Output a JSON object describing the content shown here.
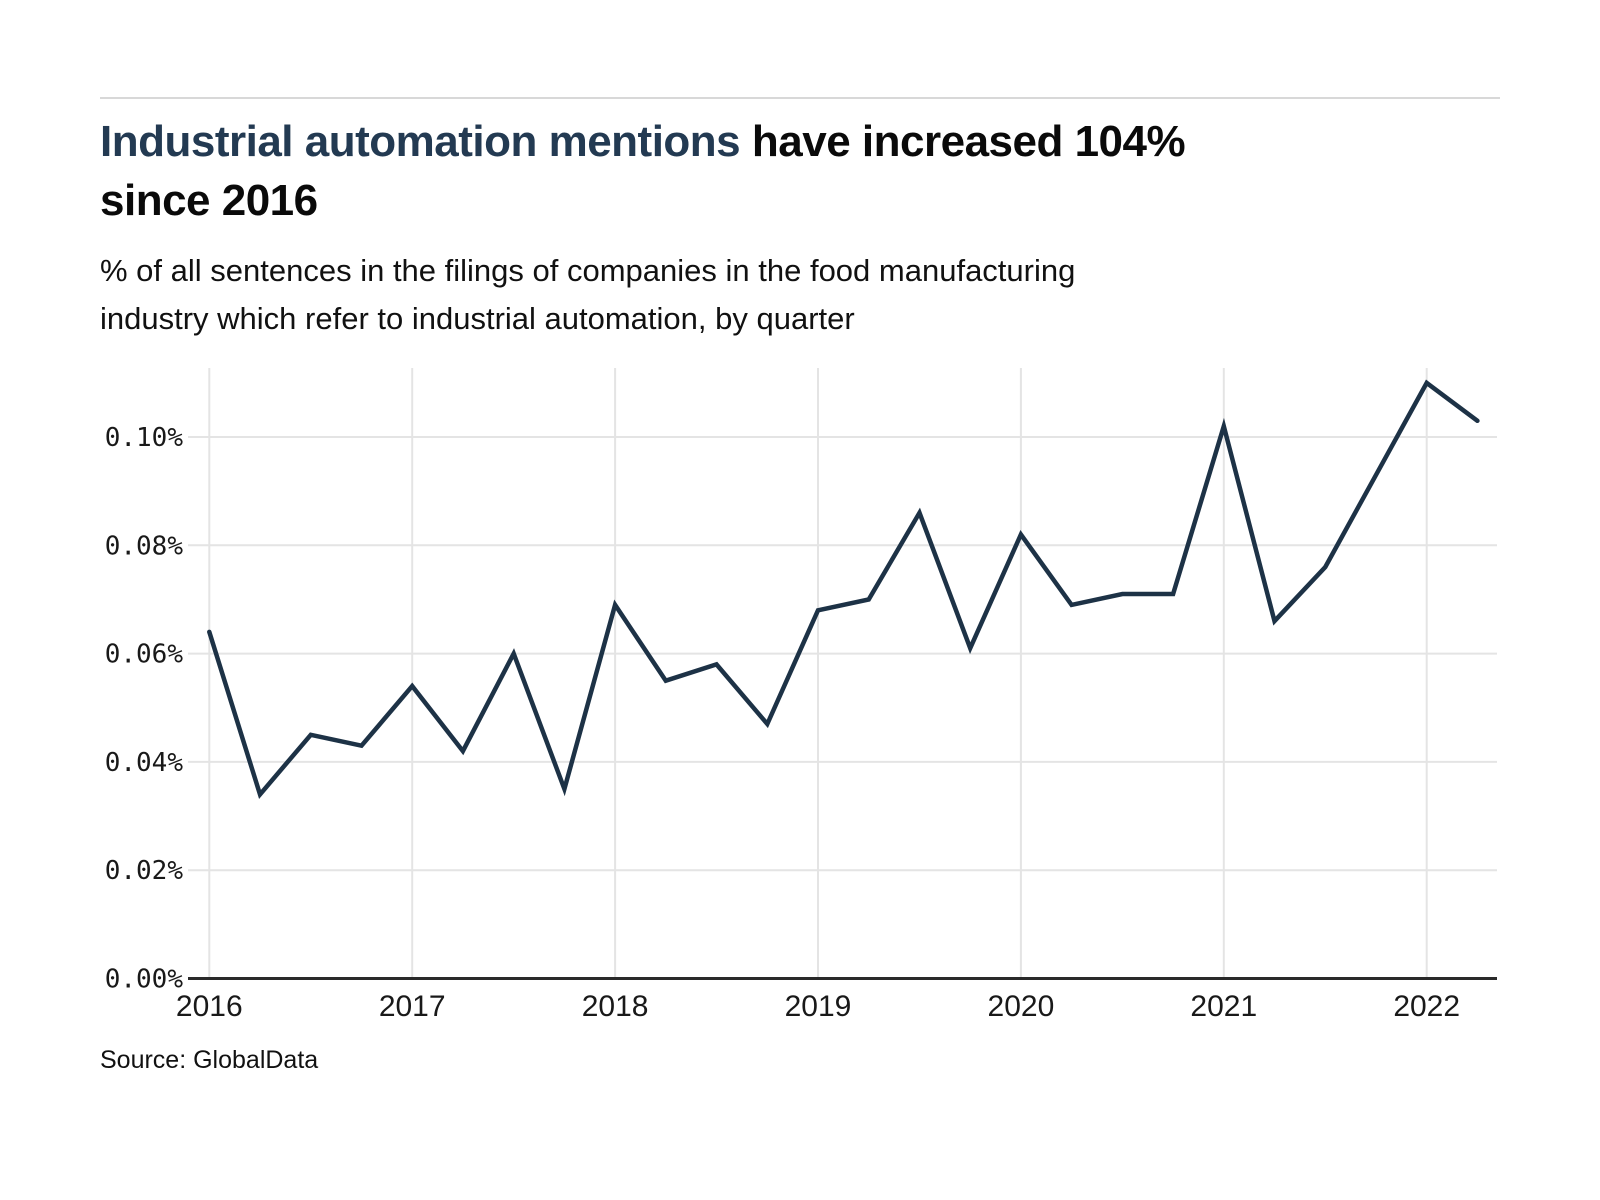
{
  "header": {
    "title_highlight": "Industrial automation mentions",
    "title_rest_line1": "have increased 104%",
    "title_line2": "since 2016",
    "subtitle_line1": "% of all sentences in the filings of companies in the food manufacturing",
    "subtitle_line2": "industry which refer to industrial automation, by quarter"
  },
  "footer": {
    "source": "Source: GlobalData"
  },
  "colors": {
    "accent_title": "#233a52",
    "line": "#1d3246",
    "grid": "#e4e4e4",
    "axis": "#2a2a2a",
    "divider": "#d8d8d8"
  },
  "chart_data": {
    "type": "line",
    "title": "Industrial automation mentions have increased 104% since 2016",
    "subtitle": "% of all sentences in the filings of companies in the food manufacturing industry which refer to industrial automation, by quarter",
    "unit": "% of sentences",
    "x": [
      "2016 Q1",
      "2016 Q2",
      "2016 Q3",
      "2016 Q4",
      "2017 Q1",
      "2017 Q2",
      "2017 Q3",
      "2017 Q4",
      "2018 Q1",
      "2018 Q2",
      "2018 Q3",
      "2018 Q4",
      "2019 Q1",
      "2019 Q2",
      "2019 Q3",
      "2019 Q4",
      "2020 Q1",
      "2020 Q2",
      "2020 Q3",
      "2020 Q4",
      "2021 Q1",
      "2021 Q2",
      "2021 Q3",
      "2021 Q4",
      "2022 Q1",
      "2022 Q2"
    ],
    "values": [
      0.064,
      0.034,
      0.045,
      0.043,
      0.054,
      0.042,
      0.06,
      0.035,
      0.069,
      0.055,
      0.058,
      0.047,
      0.068,
      0.07,
      0.086,
      0.061,
      0.082,
      0.069,
      0.071,
      0.071,
      0.102,
      0.066,
      0.076,
      0.093,
      0.11,
      0.103
    ],
    "y_ticks": [
      {
        "v": 0.0,
        "label": "0.00%"
      },
      {
        "v": 0.02,
        "label": "0.02%"
      },
      {
        "v": 0.04,
        "label": "0.04%"
      },
      {
        "v": 0.06,
        "label": "0.06%"
      },
      {
        "v": 0.08,
        "label": "0.08%"
      },
      {
        "v": 0.1,
        "label": "0.10%"
      }
    ],
    "x_ticks": [
      {
        "i": 0,
        "label": "2016"
      },
      {
        "i": 4,
        "label": "2017"
      },
      {
        "i": 8,
        "label": "2018"
      },
      {
        "i": 12,
        "label": "2019"
      },
      {
        "i": 16,
        "label": "2020"
      },
      {
        "i": 20,
        "label": "2021"
      },
      {
        "i": 24,
        "label": "2022"
      }
    ],
    "ylim": [
      0,
      0.1127
    ],
    "grid": true,
    "legend_position": "none"
  }
}
